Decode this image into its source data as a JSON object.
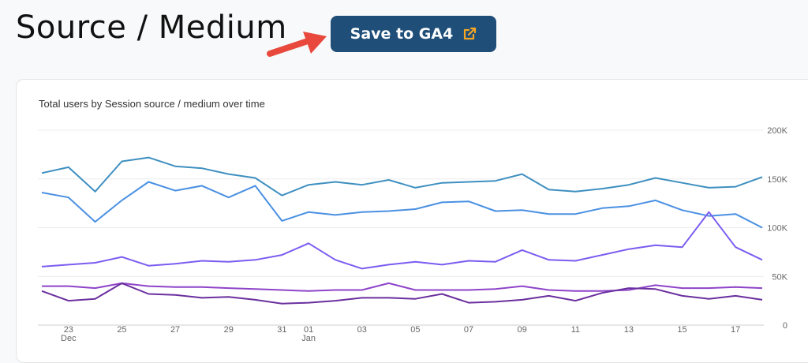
{
  "header": {
    "title": "Source / Medium",
    "save_button_label": "Save to GA4",
    "save_button_color": "#1f4e79",
    "external_link_icon": "external-link-icon",
    "external_link_icon_color": "#f5a623",
    "annotation_arrow_color": "#e8493c"
  },
  "chart_data": {
    "type": "line",
    "title": "Total users by Session source / medium over time",
    "xlabel": "",
    "ylabel": "",
    "ylim": [
      0,
      200000
    ],
    "y_ticks": [
      "0",
      "50K",
      "100K",
      "150K",
      "200K"
    ],
    "x_tick_labels": [
      {
        "label": "23",
        "sub": "Dec",
        "index": 1
      },
      {
        "label": "25",
        "sub": "",
        "index": 3
      },
      {
        "label": "27",
        "sub": "",
        "index": 5
      },
      {
        "label": "29",
        "sub": "",
        "index": 7
      },
      {
        "label": "31",
        "sub": "",
        "index": 9
      },
      {
        "label": "01",
        "sub": "Jan",
        "index": 10
      },
      {
        "label": "03",
        "sub": "",
        "index": 12
      },
      {
        "label": "05",
        "sub": "",
        "index": 14
      },
      {
        "label": "07",
        "sub": "",
        "index": 16
      },
      {
        "label": "09",
        "sub": "",
        "index": 18
      },
      {
        "label": "11",
        "sub": "",
        "index": 20
      },
      {
        "label": "13",
        "sub": "",
        "index": 22
      },
      {
        "label": "15",
        "sub": "",
        "index": 24
      },
      {
        "label": "17",
        "sub": "",
        "index": 26
      }
    ],
    "grid": true,
    "legend": "none",
    "series": [
      {
        "color": "#3e8fc0",
        "values": [
          156000,
          162000,
          137000,
          168000,
          172000,
          163000,
          161000,
          155000,
          151000,
          133000,
          144000,
          147000,
          144000,
          149000,
          141000,
          146000,
          147000,
          148000,
          155000,
          139000,
          137000,
          140000,
          144000,
          151000,
          146000,
          141000,
          142000,
          152000
        ]
      },
      {
        "color": "#4a90e2",
        "values": [
          136000,
          131000,
          106000,
          128000,
          147000,
          138000,
          143000,
          131000,
          143000,
          107000,
          116000,
          113000,
          116000,
          117000,
          119000,
          126000,
          127000,
          117000,
          118000,
          114000,
          114000,
          120000,
          122000,
          128000,
          118000,
          112000,
          114000,
          100000
        ]
      },
      {
        "color": "#7b5cf0",
        "values": [
          60000,
          62000,
          64000,
          70000,
          61000,
          63000,
          66000,
          65000,
          67000,
          72000,
          84000,
          67000,
          58000,
          62000,
          65000,
          62000,
          66000,
          65000,
          77000,
          67000,
          66000,
          72000,
          78000,
          82000,
          80000,
          116000,
          80000,
          67000
        ]
      },
      {
        "color": "#8e44c9",
        "values": [
          40000,
          40000,
          38000,
          43000,
          40000,
          39000,
          39000,
          38000,
          37000,
          36000,
          35000,
          36000,
          36000,
          43000,
          36000,
          36000,
          36000,
          37000,
          40000,
          36000,
          35000,
          35000,
          36000,
          41000,
          38000,
          38000,
          39000,
          38000
        ]
      },
      {
        "color": "#6a2f9e",
        "values": [
          35000,
          25000,
          27000,
          43000,
          32000,
          31000,
          28000,
          29000,
          26000,
          22000,
          23000,
          25000,
          28000,
          28000,
          27000,
          32000,
          23000,
          24000,
          26000,
          30000,
          25000,
          33000,
          38000,
          37000,
          30000,
          27000,
          30000,
          26000
        ]
      }
    ]
  }
}
